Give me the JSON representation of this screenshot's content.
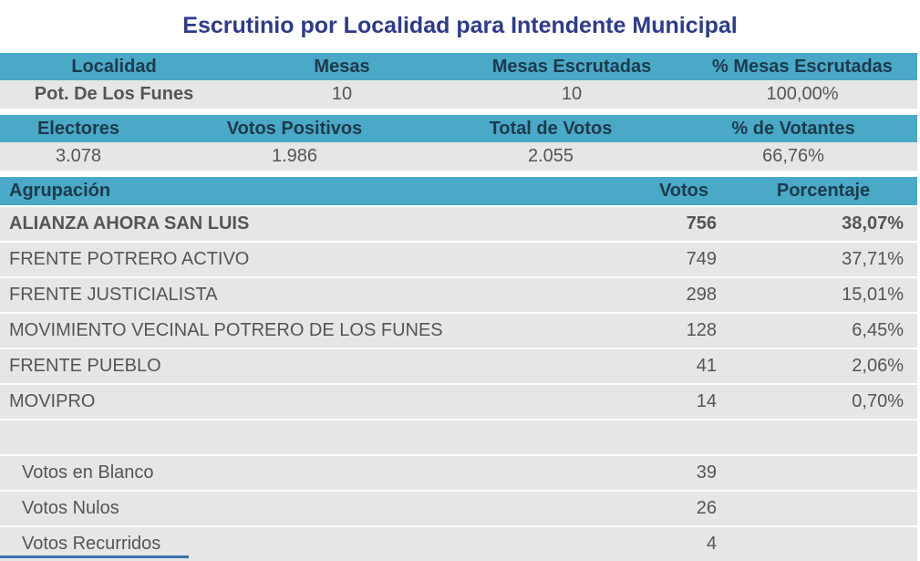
{
  "title": "Escrutinio por Localidad para Intendente Municipal",
  "summary1": {
    "headers": [
      "Localidad",
      "Mesas",
      "Mesas Escrutadas",
      "% Mesas Escrutadas"
    ],
    "values": [
      "Pot. De Los Funes",
      "10",
      "10",
      "100,00%"
    ]
  },
  "summary2": {
    "headers": [
      "Electores",
      "Votos Positivos",
      "Total de Votos",
      "% de Votantes"
    ],
    "values": [
      "3.078",
      "1.986",
      "2.055",
      "66,76%"
    ]
  },
  "results": {
    "headers": [
      "Agrupación",
      "Votos",
      "Porcentaje"
    ],
    "parties": [
      {
        "name": "ALIANZA AHORA SAN LUIS",
        "votes": "756",
        "pct": "38,07%"
      },
      {
        "name": "FRENTE POTRERO ACTIVO",
        "votes": "749",
        "pct": "37,71%"
      },
      {
        "name": "FRENTE JUSTICIALISTA",
        "votes": "298",
        "pct": "15,01%"
      },
      {
        "name": "MOVIMIENTO VECINAL POTRERO DE LOS FUNES",
        "votes": "128",
        "pct": "6,45%"
      },
      {
        "name": "FRENTE PUEBLO",
        "votes": "41",
        "pct": "2,06%"
      },
      {
        "name": "MOVIPRO",
        "votes": "14",
        "pct": "0,70%"
      }
    ],
    "other": [
      {
        "name": "Votos en Blanco",
        "votes": "39"
      },
      {
        "name": "Votos Nulos",
        "votes": "26"
      },
      {
        "name": "Votos Recurridos",
        "votes": "4"
      }
    ]
  }
}
